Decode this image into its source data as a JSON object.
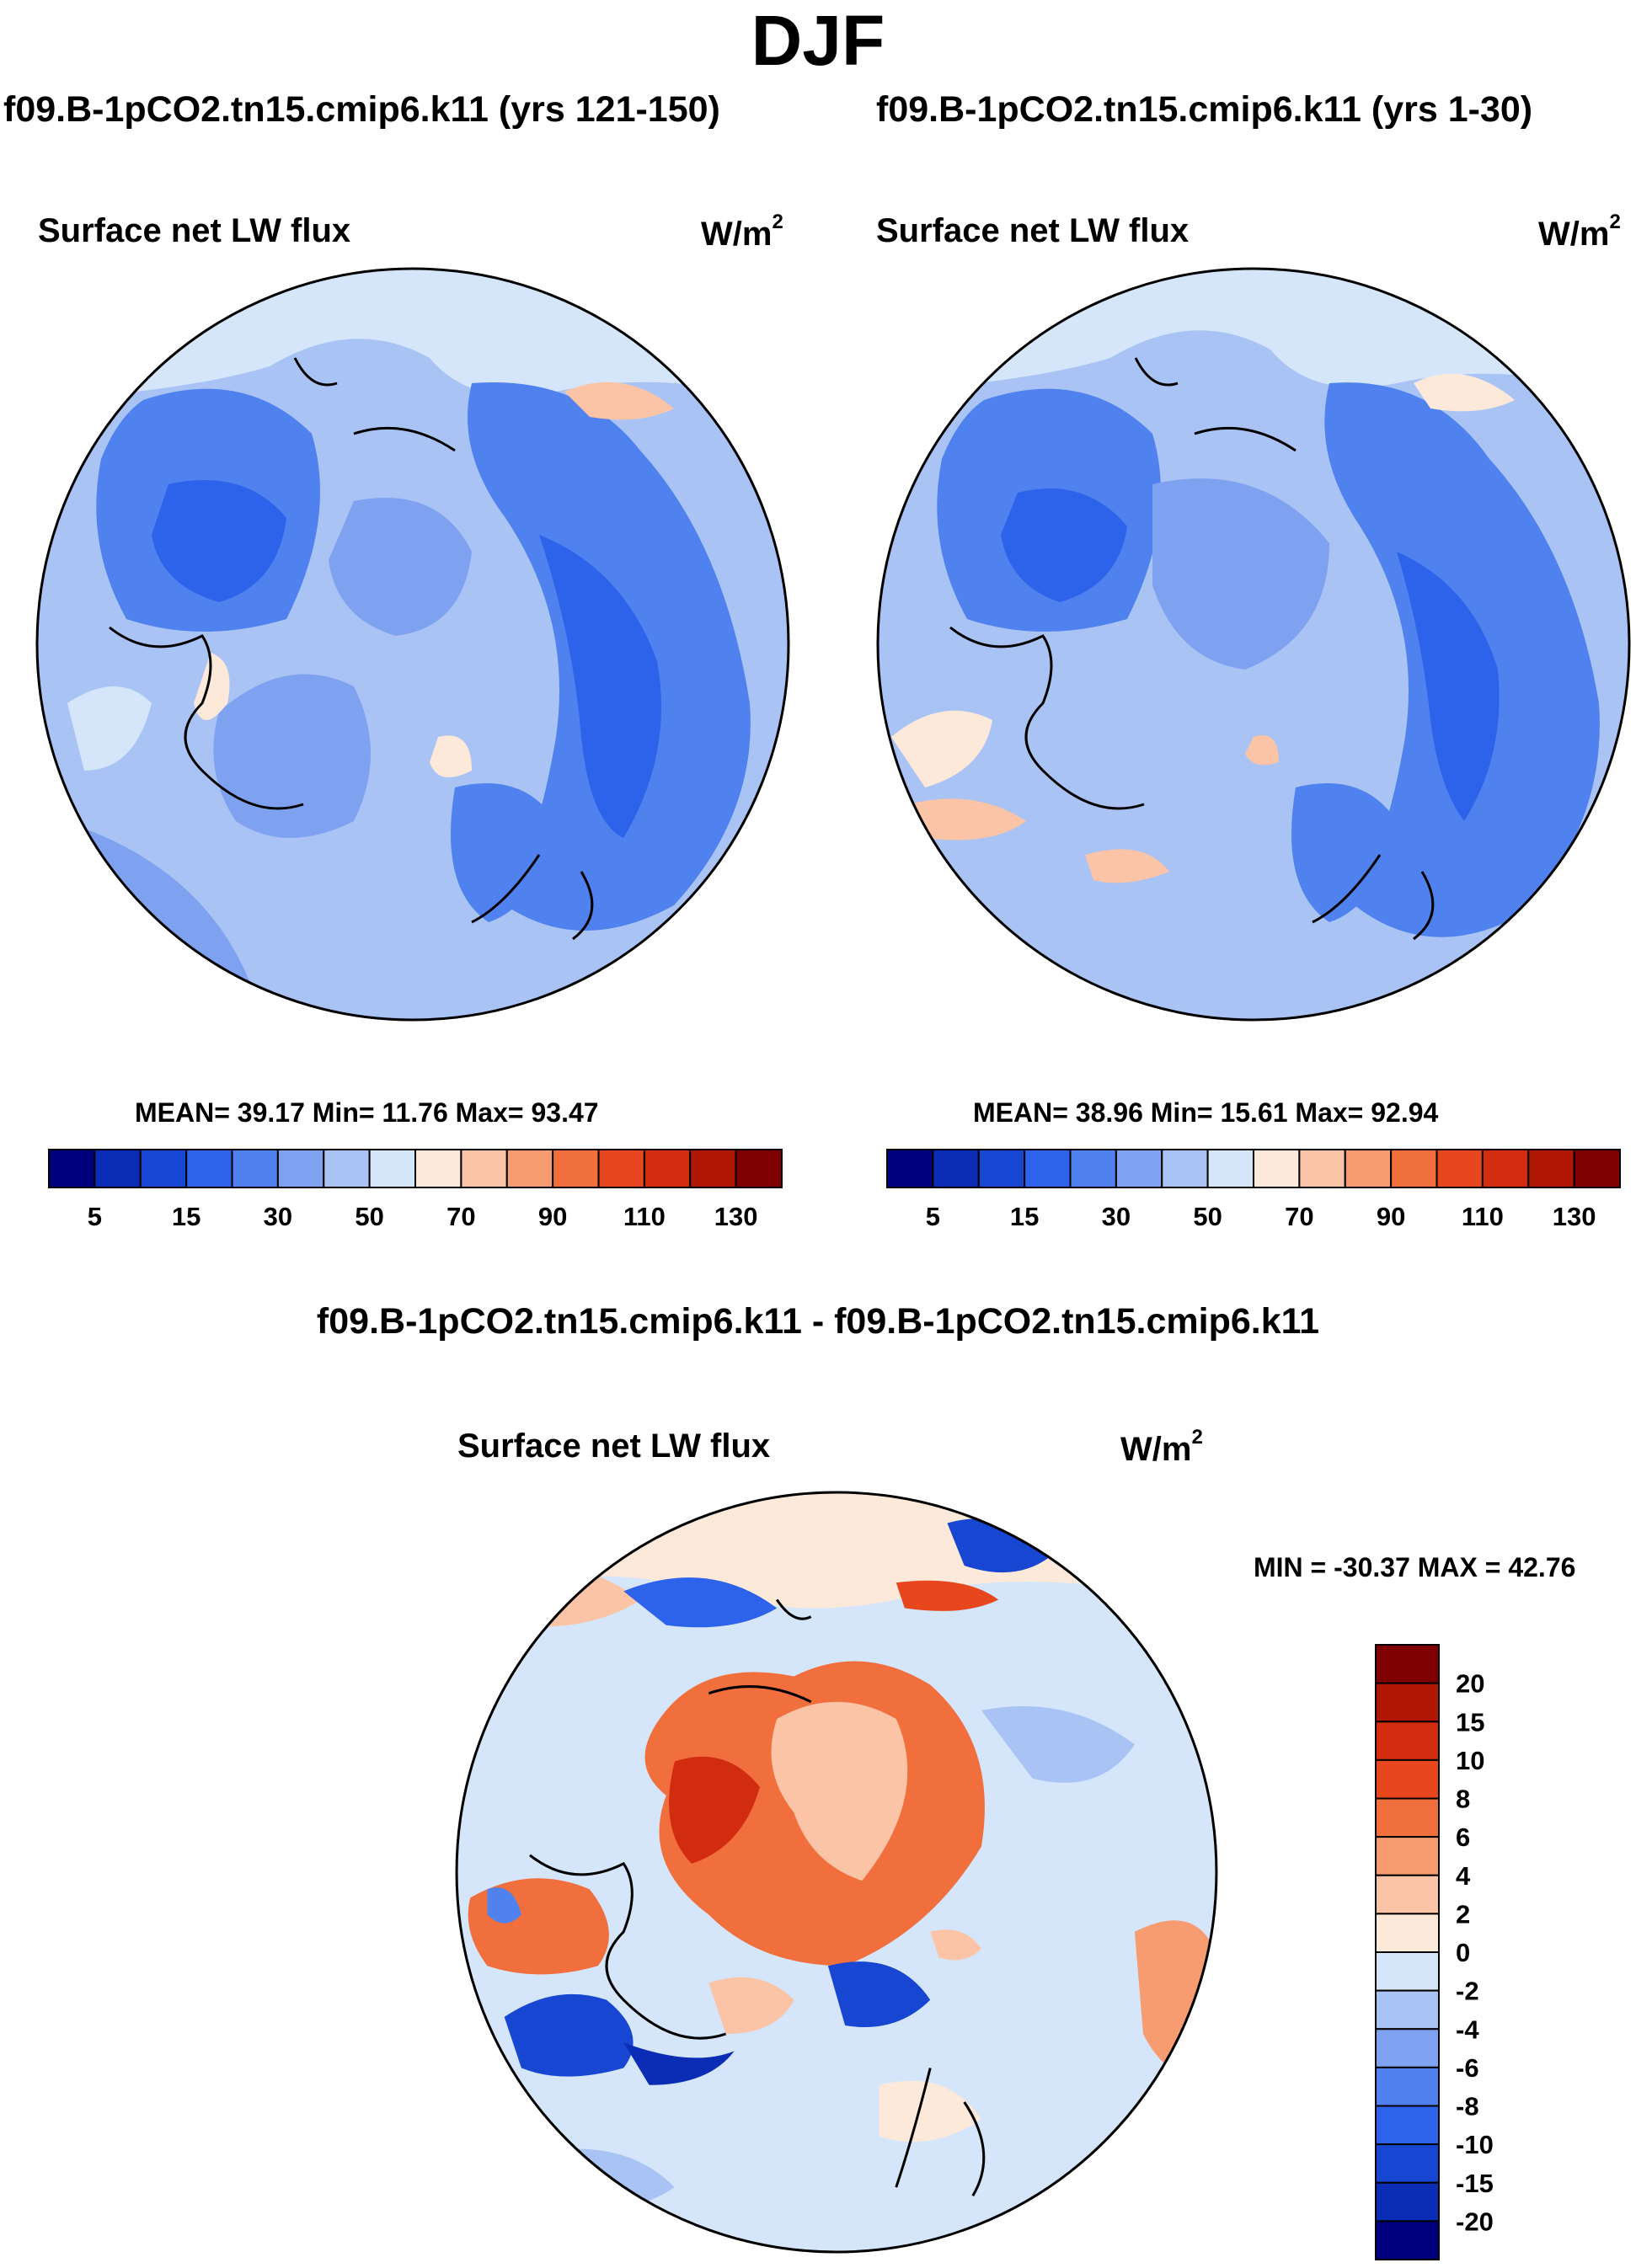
{
  "figure": {
    "season": "DJF",
    "panels": [
      {
        "case_title": "f09.B-1pCO2.tn15.cmip6.k11 (yrs 121-150)",
        "variable": "Surface net LW flux",
        "units": "W/m",
        "units_sup": "2",
        "stats": {
          "label": "MEAN=  39.17  Min=  11.76  Max=  93.47",
          "mean": 39.17,
          "min": 11.76,
          "max": 93.47
        }
      },
      {
        "case_title": "f09.B-1pCO2.tn15.cmip6.k11 (yrs 1-30)",
        "variable": "Surface net LW flux",
        "units": "W/m",
        "units_sup": "2",
        "stats": {
          "label": "MEAN=  38.96  Min=  15.61  Max=  92.94",
          "mean": 38.96,
          "min": 15.61,
          "max": 92.94
        }
      },
      {
        "case_title": "f09.B-1pCO2.tn15.cmip6.k11 - f09.B-1pCO2.tn15.cmip6.k11",
        "variable": "Surface net LW flux",
        "units": "W/m",
        "units_sup": "2",
        "stats": {
          "label": "MIN = -30.37 MAX =  42.76",
          "min": -30.37,
          "max": 42.76
        }
      }
    ]
  },
  "chart_data": [
    {
      "type": "heatmap",
      "projection": "north-polar-stereographic",
      "title": "Surface net LW flux",
      "subtitle": "f09.B-1pCO2.tn15.cmip6.k11 (yrs 121-150)",
      "units": "W/m2",
      "colorbar": {
        "orientation": "horizontal",
        "levels": [
          5,
          10,
          15,
          20,
          30,
          40,
          50,
          60,
          70,
          80,
          90,
          100,
          110,
          120,
          130
        ],
        "tick_labels": [
          "5",
          "15",
          "30",
          "50",
          "70",
          "90",
          "110",
          "130"
        ],
        "colors": [
          "#00007f",
          "#0b2db5",
          "#1746d2",
          "#2d62ea",
          "#4f82ee",
          "#7ea2f0",
          "#a9c3f5",
          "#d5e6fb",
          "#fde9d9",
          "#fbc4a6",
          "#f79b70",
          "#f16f3d",
          "#e8461d",
          "#d12b10",
          "#b01805",
          "#7f0000"
        ]
      },
      "dominant_range": [
        15,
        50
      ],
      "mean": 39.17,
      "min": 11.76,
      "max": 93.47
    },
    {
      "type": "heatmap",
      "projection": "north-polar-stereographic",
      "title": "Surface net LW flux",
      "subtitle": "f09.B-1pCO2.tn15.cmip6.k11 (yrs 1-30)",
      "units": "W/m2",
      "colorbar": {
        "orientation": "horizontal",
        "levels": [
          5,
          10,
          15,
          20,
          30,
          40,
          50,
          60,
          70,
          80,
          90,
          100,
          110,
          120,
          130
        ],
        "tick_labels": [
          "5",
          "15",
          "30",
          "50",
          "70",
          "90",
          "110",
          "130"
        ],
        "colors": [
          "#00007f",
          "#0b2db5",
          "#1746d2",
          "#2d62ea",
          "#4f82ee",
          "#7ea2f0",
          "#a9c3f5",
          "#d5e6fb",
          "#fde9d9",
          "#fbc4a6",
          "#f79b70",
          "#f16f3d",
          "#e8461d",
          "#d12b10",
          "#b01805",
          "#7f0000"
        ]
      },
      "dominant_range": [
        15,
        50
      ],
      "mean": 38.96,
      "min": 15.61,
      "max": 92.94
    },
    {
      "type": "heatmap",
      "projection": "north-polar-stereographic",
      "title": "Surface net LW flux",
      "subtitle": "f09.B-1pCO2.tn15.cmip6.k11 - f09.B-1pCO2.tn15.cmip6.k11",
      "units": "W/m2",
      "colorbar": {
        "orientation": "vertical",
        "levels": [
          -20,
          -15,
          -10,
          -8,
          -6,
          -4,
          -2,
          0,
          2,
          4,
          6,
          8,
          10,
          15,
          20
        ],
        "tick_labels": [
          "20",
          "15",
          "10",
          "8",
          "6",
          "4",
          "2",
          "0",
          "-2",
          "-4",
          "-6",
          "-8",
          "-10",
          "-15",
          "-20"
        ],
        "colors": [
          "#7f0000",
          "#b01805",
          "#d12b10",
          "#e8461d",
          "#f16f3d",
          "#f79b70",
          "#fbc4a6",
          "#fde9d9",
          "#d5e6fb",
          "#a9c3f5",
          "#7ea2f0",
          "#4f82ee",
          "#2d62ea",
          "#1746d2",
          "#0b2db5",
          "#00007f"
        ]
      },
      "min": -30.37,
      "max": 42.76
    }
  ]
}
